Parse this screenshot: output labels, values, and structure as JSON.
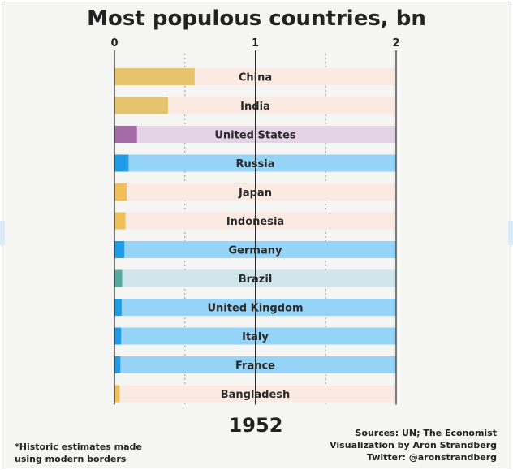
{
  "title": "Most populous countries, bn",
  "year": "1952",
  "footnote": [
    "*Historic estimates made",
    "using modern borders"
  ],
  "sources": [
    "Sources: UN; The Economist",
    "Visualization by Aron Strandberg",
    "Twitter: @aronstrandberg"
  ],
  "chart_data": {
    "type": "bar",
    "orientation": "horizontal",
    "title": "Most populous countries, bn",
    "xlim": [
      0,
      2
    ],
    "xticks": [
      0,
      1,
      2
    ],
    "grid": true,
    "categories": [
      "China",
      "India",
      "United States",
      "Russia",
      "Japan",
      "Indonesia",
      "Germany",
      "Brazil",
      "United Kingdom",
      "Italy",
      "France",
      "Bangladesh"
    ],
    "values": [
      0.57,
      0.38,
      0.16,
      0.1,
      0.087,
      0.078,
      0.07,
      0.055,
      0.051,
      0.047,
      0.042,
      0.037
    ],
    "colors": [
      "#e6c46e",
      "#e6c46e",
      "#a56ba8",
      "#1e9be9",
      "#f0bf5a",
      "#f0bf5a",
      "#1e9be9",
      "#56aaa0",
      "#1e9be9",
      "#1e9be9",
      "#1e9be9",
      "#f0bf5a"
    ],
    "track_colors": [
      "#fbeae2",
      "#fbeae2",
      "#e4d2e6",
      "#95d4f6",
      "#fbeae2",
      "#fbeae2",
      "#95d4f6",
      "#cfe7ec",
      "#95d4f6",
      "#95d4f6",
      "#95d4f6",
      "#fbeae2"
    ]
  }
}
